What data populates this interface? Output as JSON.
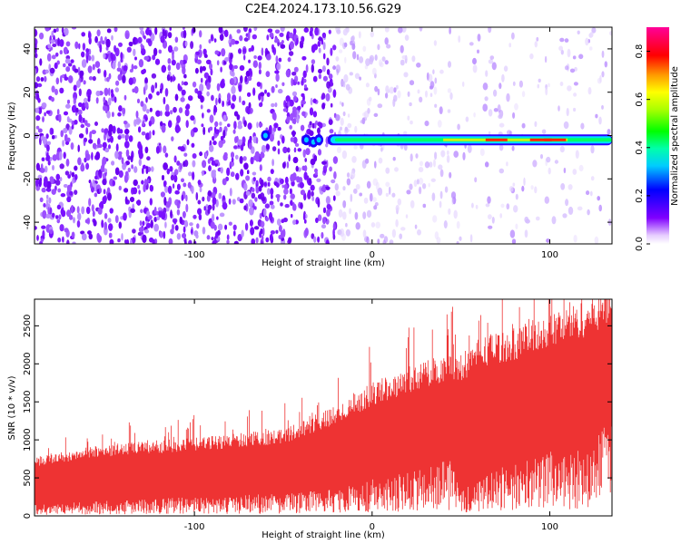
{
  "title": "C2E4.2024.173.10.56.G29",
  "chart_data": [
    {
      "type": "heatmap",
      "xlabel": "Height of straight line (km)",
      "ylabel": "Frequency (Hz)",
      "xlim": [
        -190,
        135
      ],
      "ylim": [
        -50,
        50
      ],
      "xticks": [
        -100,
        0,
        100
      ],
      "yticks": [
        -40,
        -20,
        0,
        20,
        40
      ],
      "grid": false,
      "signal_band": {
        "x_start": -25,
        "x_end": 135,
        "frequency": -2,
        "peak_x": [
          70,
          95,
          103
        ],
        "blobs": [
          {
            "x": -60,
            "y": 0
          },
          {
            "x": -37,
            "y": -2
          },
          {
            "x": -33,
            "y": -3
          },
          {
            "x": -30,
            "y": -2
          }
        ]
      },
      "colorbar": {
        "label": "Normalized spectral amplitude",
        "range": [
          0.0,
          0.9
        ],
        "ticks": [
          "0.0",
          "0.2",
          "0.4",
          "0.6",
          "0.8"
        ],
        "colors": [
          "#ffffff",
          "#7f00ff",
          "#0000ff",
          "#00ffff",
          "#00ff00",
          "#ffff00",
          "#ff0000",
          "#ff00ff"
        ]
      }
    },
    {
      "type": "area",
      "xlabel": "Height of straight line (km)",
      "ylabel": "SNR (10 * v/v)",
      "xlim": [
        -190,
        135
      ],
      "ylim": [
        0,
        2850
      ],
      "xticks": [
        -100,
        0,
        100
      ],
      "yticks": [
        0,
        500,
        1000,
        1500,
        2000,
        2500
      ],
      "grid": false,
      "series": [
        {
          "color": "#ee3333",
          "x": [
            -190,
            -150,
            -100,
            -50,
            -20,
            0,
            25,
            45,
            50,
            60,
            80,
            100,
            120,
            135
          ],
          "upper": [
            650,
            780,
            850,
            950,
            1200,
            1450,
            1650,
            1800,
            1750,
            1950,
            2050,
            2200,
            2350,
            2550
          ],
          "lower": [
            150,
            200,
            250,
            300,
            350,
            480,
            600,
            750,
            300,
            550,
            700,
            850,
            900,
            1300
          ]
        }
      ]
    }
  ]
}
